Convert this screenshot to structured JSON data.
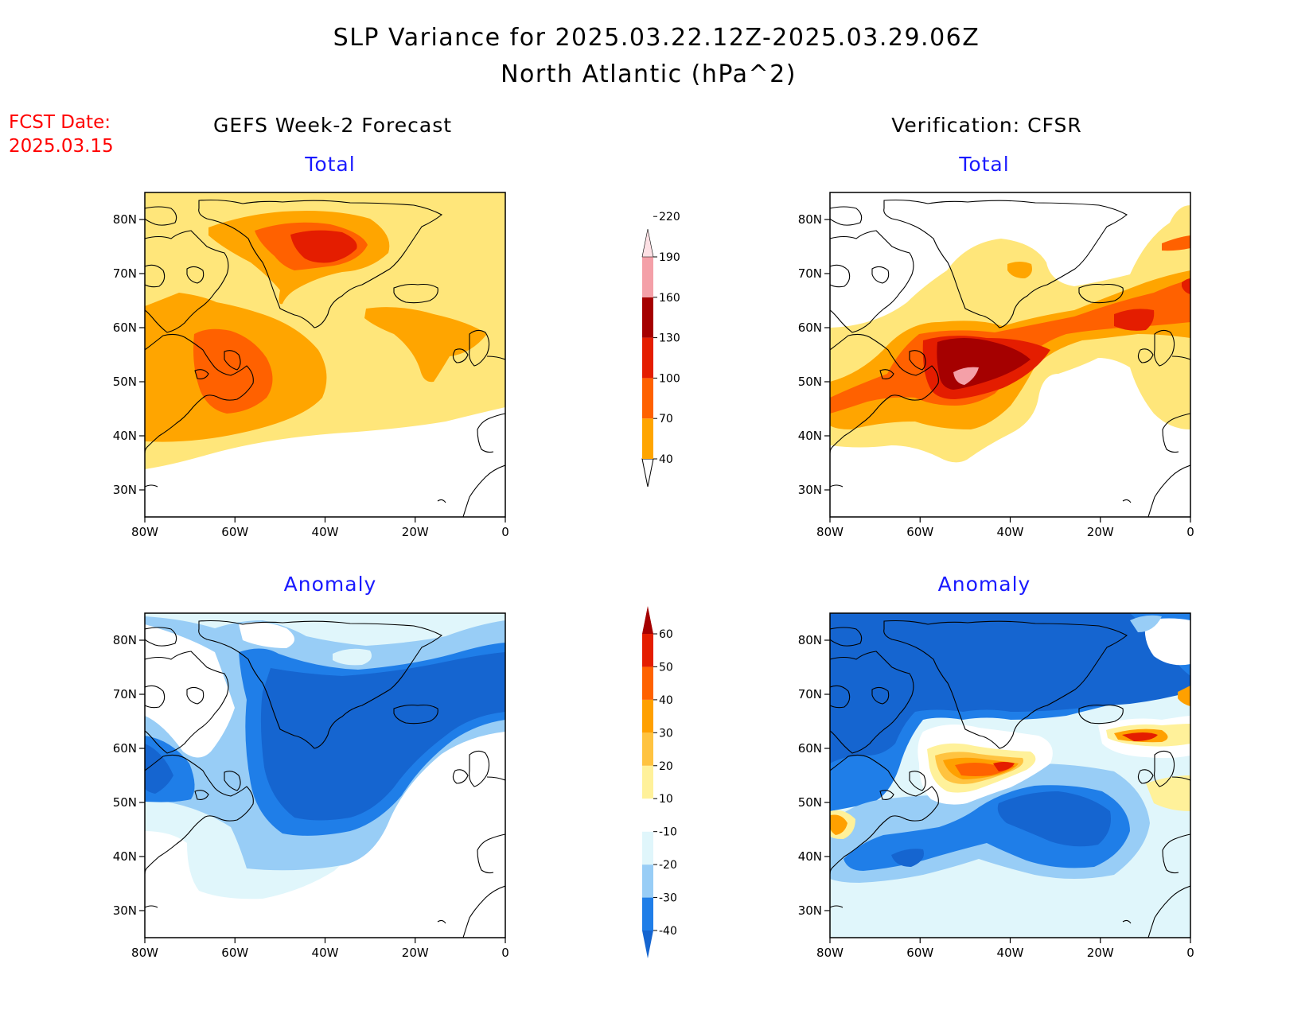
{
  "title": {
    "line1": "SLP Variance for 2025.03.22.12Z-2025.03.29.06Z",
    "line2": "North Atlantic (hPa^2)"
  },
  "fcst_date": {
    "label": "FCST Date:",
    "value": "2025.03.15"
  },
  "columns": {
    "left": "GEFS Week-2 Forecast",
    "right": "Verification: CFSR"
  },
  "panel_titles": {
    "total": "Total",
    "anomaly": "Anomaly"
  },
  "axes": {
    "lat_labels": [
      "80N",
      "70N",
      "60N",
      "50N",
      "40N",
      "30N"
    ],
    "lon_labels": [
      "80W",
      "60W",
      "40W",
      "20W",
      "0"
    ],
    "lat_range": [
      25,
      85
    ],
    "lon_range": [
      -80,
      0
    ]
  },
  "colorbars": {
    "total": {
      "levels": [
        "40",
        "70",
        "100",
        "130",
        "160",
        "190",
        "220"
      ],
      "colors": [
        "#ffe67a",
        "#ffa500",
        "#ff6100",
        "#e41d00",
        "#a50000",
        "#f4a0a8",
        "#fde0e4"
      ]
    },
    "anomaly": {
      "levels": [
        "-40",
        "-30",
        "-20",
        "-10",
        "10",
        "20",
        "30",
        "40",
        "50",
        "60"
      ],
      "colors": [
        "#1565d0",
        "#1f7ee8",
        "#98cdf6",
        "#e0f6fb",
        "#ffffff",
        "#fff19a",
        "#ffc340",
        "#ffa000",
        "#ff6200",
        "#e41d00",
        "#a50000"
      ]
    }
  },
  "land_color": "#000000"
}
